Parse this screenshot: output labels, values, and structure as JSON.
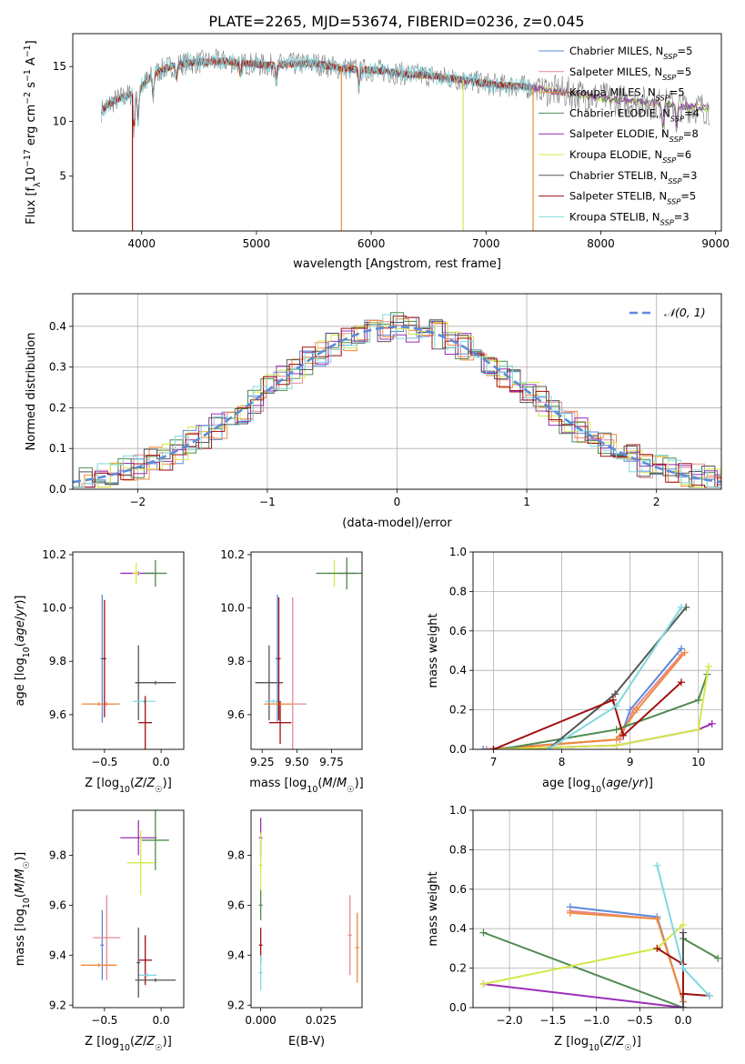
{
  "title": "PLATE=2265, MJD=53674, FIBERID=0236, z=0.045",
  "colors": {
    "Chabrier MILES": "#5b8bd9",
    "Salpeter MILES": "#e48a93",
    "Kroupa MILES": "#f08a3a",
    "Chabrier ELODIE": "#4f8a4f",
    "Salpeter ELODIE": "#9b2fb5",
    "Kroupa ELODIE": "#d4e84a",
    "Chabrier STELIB": "#555555",
    "Salpeter STELIB": "#a01010",
    "Kroupa STELIB": "#80d8e0"
  },
  "legend_spectrum": [
    {
      "name": "Chabrier MILES",
      "sub": "SSP",
      "n": "5"
    },
    {
      "name": "Salpeter MILES",
      "sub": "SSP",
      "n": "5"
    },
    {
      "name": "Kroupa MILES",
      "sub": "SSP",
      "n": "5"
    },
    {
      "name": "Chabrier ELODIE",
      "sub": "SSP",
      "n": "4"
    },
    {
      "name": "Salpeter ELODIE",
      "sub": "SSP",
      "n": "8"
    },
    {
      "name": "Kroupa ELODIE",
      "sub": "SSP",
      "n": "6"
    },
    {
      "name": "Chabrier STELIB",
      "sub": "SSP",
      "n": "3"
    },
    {
      "name": "Salpeter STELIB",
      "sub": "SSP",
      "n": "5"
    },
    {
      "name": "Kroupa STELIB",
      "sub": "SSP",
      "n": "3"
    }
  ],
  "legend_gauss": "𝒩(0, 1)",
  "chart_data": [
    {
      "id": "spectrum",
      "type": "line",
      "xlabel": "wavelength [Angstrom, rest frame]",
      "ylabel": "Flux [f_λ 10^-17 erg cm^-2 s^-1 A^-1]",
      "xlim": [
        3400,
        9050
      ],
      "ylim": [
        0,
        18
      ],
      "xticks": [
        4000,
        5000,
        6000,
        7000,
        8000,
        9000
      ],
      "yticks": [
        5,
        10,
        15
      ],
      "spectrum_anchors": {
        "wavelength": [
          3650,
          3750,
          3850,
          3950,
          4050,
          4150,
          4300,
          4500,
          4700,
          4900,
          5100,
          5300,
          5500,
          5700,
          5900,
          6100,
          6300,
          6500,
          6700,
          6900,
          7100,
          7300,
          7500,
          7700,
          7900,
          8100,
          8300,
          8500,
          8700,
          8900
        ],
        "flux": [
          11.0,
          11.8,
          12.3,
          12.6,
          13.8,
          14.6,
          15.2,
          15.4,
          15.5,
          15.3,
          15.1,
          15.2,
          15.3,
          14.9,
          14.7,
          14.6,
          14.3,
          14.2,
          13.9,
          13.6,
          13.3,
          13.2,
          12.9,
          12.6,
          12.3,
          12.0,
          11.8,
          11.6,
          11.4,
          11.2
        ]
      },
      "absorption_features": [
        {
          "wavelength": 3934,
          "depth": 3.5
        },
        {
          "wavelength": 3969,
          "depth": 3.0
        },
        {
          "wavelength": 4101,
          "depth": 2.0
        },
        {
          "wavelength": 4304,
          "depth": 1.5
        },
        {
          "wavelength": 4861,
          "depth": 1.2
        },
        {
          "wavelength": 5175,
          "depth": 1.4
        },
        {
          "wavelength": 5893,
          "depth": 1.4
        },
        {
          "wavelength": 8542,
          "depth": 2.5
        },
        {
          "wavelength": 8662,
          "depth": 2.3
        }
      ],
      "model_drops": [
        {
          "series": "Salpeter STELIB",
          "wavelength": 3920
        },
        {
          "series": "Kroupa MILES",
          "wavelength": 5740
        },
        {
          "series": "Kroupa ELODIE",
          "wavelength": 6800
        },
        {
          "series": "Kroupa MILES",
          "wavelength": 7410
        }
      ]
    },
    {
      "id": "residuals",
      "type": "line",
      "xlabel": "(data-model)/error",
      "ylabel": "Normed distribution",
      "xlim": [
        -2.5,
        2.5
      ],
      "ylim": [
        0,
        0.48
      ],
      "xticks": [
        -2,
        -1,
        0,
        1,
        2
      ],
      "yticks": [
        0.0,
        0.1,
        0.2,
        0.3,
        0.4
      ],
      "gaussian": {
        "mean": 0,
        "sigma": 1
      },
      "bin_width": 0.1,
      "grid": true,
      "legend_position": "top-right"
    },
    {
      "id": "Z-age",
      "type": "scatter",
      "xlabel": "Z [log10(Z/Z☉)]",
      "ylabel": "age  [log10(age/yr)]",
      "xlim": [
        -0.78,
        0.2
      ],
      "ylim": [
        9.47,
        10.21
      ],
      "xticks": [
        -0.5,
        0.0
      ],
      "yticks": [
        9.6,
        9.8,
        10.0,
        10.2
      ],
      "points": [
        {
          "series": "Salpeter ELODIE",
          "x": -0.2,
          "xerr": 0.16,
          "y": 10.13,
          "yerr": 0.0
        },
        {
          "series": "Kroupa ELODIE",
          "x": -0.22,
          "xerr": 0.03,
          "y": 10.13,
          "yerr": 0.04
        },
        {
          "series": "Chabrier ELODIE",
          "x": -0.05,
          "xerr": 0.1,
          "y": 10.13,
          "yerr": 0.05
        },
        {
          "series": "Chabrier STELIB",
          "x": -0.05,
          "xerr": 0.18,
          "y": 9.72,
          "yerr": 0.0
        },
        {
          "series": "Chabrier STELIB",
          "x": -0.2,
          "xerr": 0.0,
          "y": 9.72,
          "yerr": 0.14
        },
        {
          "series": "Kroupa STELIB",
          "x": -0.15,
          "xerr": 0.1,
          "y": 9.65,
          "yerr": 0.0
        },
        {
          "series": "Salpeter STELIB",
          "x": -0.14,
          "xerr": 0.06,
          "y": 9.57,
          "yerr": 0.1
        },
        {
          "series": "Chabrier MILES",
          "x": -0.52,
          "xerr": 0.0,
          "y": 9.81,
          "yerr": 0.24
        },
        {
          "series": "Salpeter MILES",
          "x": -0.48,
          "xerr": 0.12,
          "y": 9.64,
          "yerr": 0.0
        },
        {
          "series": "Kroupa MILES",
          "x": -0.55,
          "xerr": 0.15,
          "y": 9.64,
          "yerr": 0.0
        },
        {
          "series": "Salpeter STELIB",
          "x": -0.5,
          "xerr": 0.0,
          "y": 9.81,
          "yerr": 0.22
        }
      ]
    },
    {
      "id": "mass-age",
      "type": "scatter",
      "xlabel": "mass [log10(M/M☉)]",
      "ylabel": "",
      "xlim": [
        9.17,
        9.97
      ],
      "ylim": [
        9.47,
        10.21
      ],
      "xticks": [
        9.25,
        9.5,
        9.75
      ],
      "yticks": [
        9.6,
        9.8,
        10.0,
        10.2
      ],
      "points": [
        {
          "series": "Salpeter ELODIE",
          "x": 9.86,
          "xerr": 0.06,
          "y": 10.13,
          "yerr": 0.0
        },
        {
          "series": "Kroupa ELODIE",
          "x": 9.77,
          "xerr": 0.04,
          "y": 10.13,
          "yerr": 0.05
        },
        {
          "series": "Chabrier ELODIE",
          "x": 9.86,
          "xerr": 0.22,
          "y": 10.13,
          "yerr": 0.06
        },
        {
          "series": "Chabrier STELIB",
          "x": 9.3,
          "xerr": 0.1,
          "y": 9.72,
          "yerr": 0.14
        },
        {
          "series": "Kroupa STELIB",
          "x": 9.33,
          "xerr": 0.06,
          "y": 9.65,
          "yerr": 0.0
        },
        {
          "series": "Salpeter STELIB",
          "x": 9.38,
          "xerr": 0.08,
          "y": 9.57,
          "yerr": 0.08
        },
        {
          "series": "Chabrier MILES",
          "x": 9.36,
          "xerr": 0.0,
          "y": 9.81,
          "yerr": 0.24
        },
        {
          "series": "Salpeter MILES",
          "x": 9.47,
          "xerr": 0.1,
          "y": 9.64,
          "yerr": 0.4
        },
        {
          "series": "Kroupa MILES",
          "x": 9.36,
          "xerr": 0.1,
          "y": 9.64,
          "yerr": 0.0
        },
        {
          "series": "Salpeter STELIB",
          "x": 9.37,
          "xerr": 0.0,
          "y": 9.81,
          "yerr": 0.23
        }
      ]
    },
    {
      "id": "age-weight",
      "type": "line",
      "xlabel": "age  [log10(age/yr)]",
      "ylabel": "mass weight",
      "xlim": [
        6.7,
        10.35
      ],
      "ylim": [
        0,
        1
      ],
      "xticks": [
        7,
        8,
        9,
        10
      ],
      "yticks": [
        0.0,
        0.2,
        0.4,
        0.6,
        0.8,
        1.0
      ],
      "grid": true,
      "series": [
        {
          "name": "Chabrier MILES",
          "x": [
            6.85,
            8.85,
            9.0,
            9.75
          ],
          "y": [
            0.0,
            0.05,
            0.2,
            0.51
          ]
        },
        {
          "name": "Salpeter MILES",
          "x": [
            6.9,
            8.85,
            9.05,
            9.75
          ],
          "y": [
            0.0,
            0.05,
            0.2,
            0.48
          ]
        },
        {
          "name": "Kroupa MILES",
          "x": [
            7.0,
            8.8,
            9.1,
            9.8
          ],
          "y": [
            0.0,
            0.05,
            0.2,
            0.49
          ]
        },
        {
          "name": "Chabrier ELODIE",
          "x": [
            7.1,
            8.8,
            10.0,
            10.13
          ],
          "y": [
            0.0,
            0.1,
            0.25,
            0.38
          ]
        },
        {
          "name": "Salpeter ELODIE",
          "x": [
            7.0,
            8.8,
            10.0,
            10.2
          ],
          "y": [
            0.0,
            0.02,
            0.1,
            0.13
          ]
        },
        {
          "name": "Kroupa ELODIE",
          "x": [
            7.0,
            8.8,
            10.0,
            10.15
          ],
          "y": [
            0.0,
            0.02,
            0.1,
            0.42
          ]
        },
        {
          "name": "Chabrier STELIB",
          "x": [
            7.8,
            8.78,
            9.82
          ],
          "y": [
            0.0,
            0.28,
            0.72
          ]
        },
        {
          "name": "Salpeter STELIB",
          "x": [
            7.0,
            8.75,
            8.9,
            9.75
          ],
          "y": [
            0.0,
            0.25,
            0.07,
            0.34
          ]
        },
        {
          "name": "Kroupa STELIB",
          "x": [
            7.8,
            8.8,
            9.75
          ],
          "y": [
            0.0,
            0.22,
            0.72
          ]
        }
      ]
    },
    {
      "id": "Z-mass",
      "type": "scatter",
      "xlabel": "Z [log10(Z/Z☉)]",
      "ylabel": "mass [log10(M/M☉)]",
      "xlim": [
        -0.78,
        0.2
      ],
      "ylim": [
        9.19,
        9.98
      ],
      "xticks": [
        -0.5,
        0.0
      ],
      "yticks": [
        9.2,
        9.4,
        9.6,
        9.8
      ],
      "points": [
        {
          "series": "Salpeter ELODIE",
          "x": -0.2,
          "xerr": 0.16,
          "y": 9.87,
          "yerr": 0.07
        },
        {
          "series": "Chabrier ELODIE",
          "x": -0.05,
          "xerr": 0.12,
          "y": 9.86,
          "yerr": 0.12
        },
        {
          "series": "Kroupa ELODIE",
          "x": -0.18,
          "xerr": 0.12,
          "y": 9.77,
          "yerr": 0.13
        },
        {
          "series": "Chabrier MILES",
          "x": -0.52,
          "xerr": 0.0,
          "y": 9.44,
          "yerr": 0.14
        },
        {
          "series": "Salpeter MILES",
          "x": -0.48,
          "xerr": 0.12,
          "y": 9.47,
          "yerr": 0.17
        },
        {
          "series": "Kroupa MILES",
          "x": -0.55,
          "xerr": 0.16,
          "y": 9.36,
          "yerr": 0.0
        },
        {
          "series": "Salpeter STELIB",
          "x": -0.14,
          "xerr": 0.06,
          "y": 9.38,
          "yerr": 0.1
        },
        {
          "series": "Kroupa STELIB",
          "x": -0.12,
          "xerr": 0.08,
          "y": 9.32,
          "yerr": 0.0
        },
        {
          "series": "Chabrier STELIB",
          "x": -0.05,
          "xerr": 0.18,
          "y": 9.3,
          "yerr": 0.0
        },
        {
          "series": "Chabrier STELIB",
          "x": -0.2,
          "xerr": 0.0,
          "y": 9.37,
          "yerr": 0.14
        }
      ]
    },
    {
      "id": "EBV-mass",
      "type": "scatter",
      "xlabel": "E(B-V)",
      "ylabel": "",
      "xlim": [
        -0.004,
        0.042
      ],
      "ylim": [
        9.19,
        9.98
      ],
      "xticks": [
        0.0,
        0.025
      ],
      "xticklabels": [
        "0.000",
        "0.025"
      ],
      "yticks": [
        9.2,
        9.4,
        9.6,
        9.8
      ],
      "points": [
        {
          "series": "Salpeter ELODIE",
          "x": 0.0,
          "xerr": 0.0,
          "y": 9.87,
          "yerr": 0.08
        },
        {
          "series": "Kroupa ELODIE",
          "x": 0.0,
          "xerr": 0.0,
          "y": 9.76,
          "yerr": 0.13
        },
        {
          "series": "Chabrier ELODIE",
          "x": 0.0,
          "xerr": 0.0,
          "y": 9.6,
          "yerr": 0.06
        },
        {
          "series": "Salpeter STELIB",
          "x": 0.0,
          "xerr": 0.0,
          "y": 9.44,
          "yerr": 0.07
        },
        {
          "series": "Kroupa STELIB",
          "x": 0.0,
          "xerr": 0.0,
          "y": 9.33,
          "yerr": 0.07
        },
        {
          "series": "Salpeter MILES",
          "x": 0.037,
          "xerr": 0.0,
          "y": 9.48,
          "yerr": 0.16
        },
        {
          "series": "Kroupa MILES",
          "x": 0.04,
          "xerr": 0.0,
          "y": 9.43,
          "yerr": 0.14
        }
      ]
    },
    {
      "id": "Z-weight",
      "type": "line",
      "xlabel": "Z [log10(Z/Z☉)]",
      "ylabel": "mass weight",
      "xlim": [
        -2.42,
        0.45
      ],
      "ylim": [
        0,
        1
      ],
      "xticks": [
        -2.0,
        -1.5,
        -1.0,
        -0.5,
        0.0
      ],
      "yticks": [
        0.0,
        0.2,
        0.4,
        0.6,
        0.8,
        1.0
      ],
      "grid": true,
      "series": [
        {
          "name": "Chabrier MILES",
          "x": [
            -1.3,
            -0.3,
            0.0
          ],
          "y": [
            0.51,
            0.46,
            0.03
          ]
        },
        {
          "name": "Salpeter MILES",
          "x": [
            -1.3,
            -0.3,
            0.0
          ],
          "y": [
            0.49,
            0.45,
            0.03
          ]
        },
        {
          "name": "Kroupa MILES",
          "x": [
            -1.3,
            -0.3,
            0.0
          ],
          "y": [
            0.48,
            0.45,
            0.03
          ]
        },
        {
          "name": "Chabrier ELODIE",
          "x": [
            -2.3,
            0.0,
            0.0,
            0.4
          ],
          "y": [
            0.38,
            0.0,
            0.35,
            0.25
          ]
        },
        {
          "name": "Salpeter ELODIE",
          "x": [
            -2.3,
            0.0
          ],
          "y": [
            0.12,
            0.0
          ]
        },
        {
          "name": "Kroupa ELODIE",
          "x": [
            -2.3,
            -0.3,
            0.0
          ],
          "y": [
            0.12,
            0.3,
            0.42
          ]
        },
        {
          "name": "Chabrier STELIB",
          "x": [
            0.0,
            0.0
          ],
          "y": [
            0.0,
            0.38
          ]
        },
        {
          "name": "Salpeter STELIB",
          "x": [
            -0.3,
            0.0,
            0.0,
            0.3
          ],
          "y": [
            0.3,
            0.22,
            0.07,
            0.06
          ]
        },
        {
          "name": "Kroupa STELIB",
          "x": [
            -0.3,
            0.0,
            0.3
          ],
          "y": [
            0.72,
            0.2,
            0.06
          ]
        }
      ]
    }
  ]
}
